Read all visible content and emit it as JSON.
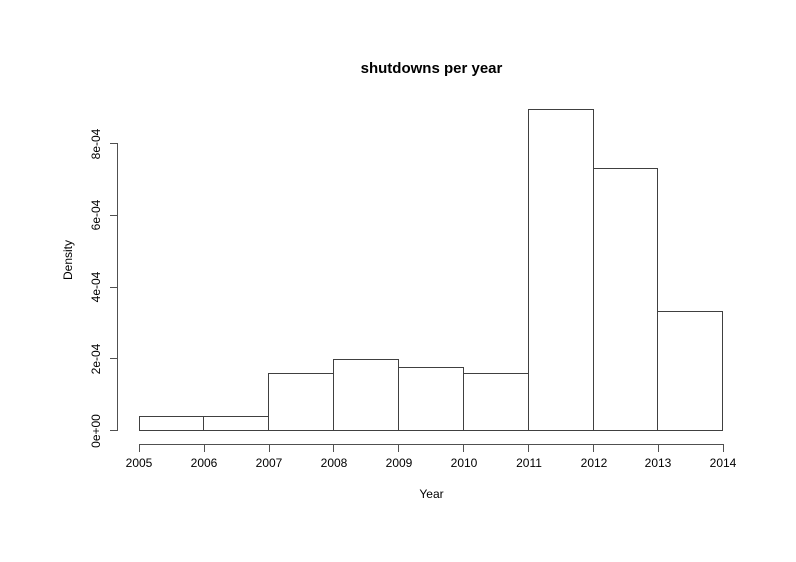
{
  "chart_data": {
    "type": "bar",
    "subtype": "histogram",
    "title": "shutdowns per year",
    "xlabel": "Year",
    "ylabel": "Density",
    "xlim": [
      2005,
      2014
    ],
    "ylim": [
      0,
      0.0009
    ],
    "grid": false,
    "legend": "none",
    "x_ticks": [
      2005,
      2006,
      2007,
      2008,
      2009,
      2010,
      2011,
      2012,
      2013,
      2014
    ],
    "y_ticks": [
      {
        "value": 0.0,
        "label": "0e+00"
      },
      {
        "value": 0.0002,
        "label": "2e-04"
      },
      {
        "value": 0.0004,
        "label": "4e-04"
      },
      {
        "value": 0.0006,
        "label": "6e-04"
      },
      {
        "value": 0.0008,
        "label": "8e-04"
      }
    ],
    "bins": [
      {
        "from": 2005,
        "to": 2006,
        "density": 4e-05
      },
      {
        "from": 2006,
        "to": 2007,
        "density": 4e-05
      },
      {
        "from": 2007,
        "to": 2008,
        "density": 0.000159
      },
      {
        "from": 2008,
        "to": 2009,
        "density": 0.000198
      },
      {
        "from": 2009,
        "to": 2010,
        "density": 0.000178
      },
      {
        "from": 2010,
        "to": 2011,
        "density": 0.000159
      },
      {
        "from": 2011,
        "to": 2012,
        "density": 0.000897
      },
      {
        "from": 2012,
        "to": 2013,
        "density": 0.000732
      },
      {
        "from": 2013,
        "to": 2014,
        "density": 0.000332
      }
    ],
    "colors": {
      "background": "#ffffff",
      "bar_fill": "#ffffff",
      "bar_border": "#404040",
      "axis": "#505050",
      "text": "#000000"
    }
  }
}
